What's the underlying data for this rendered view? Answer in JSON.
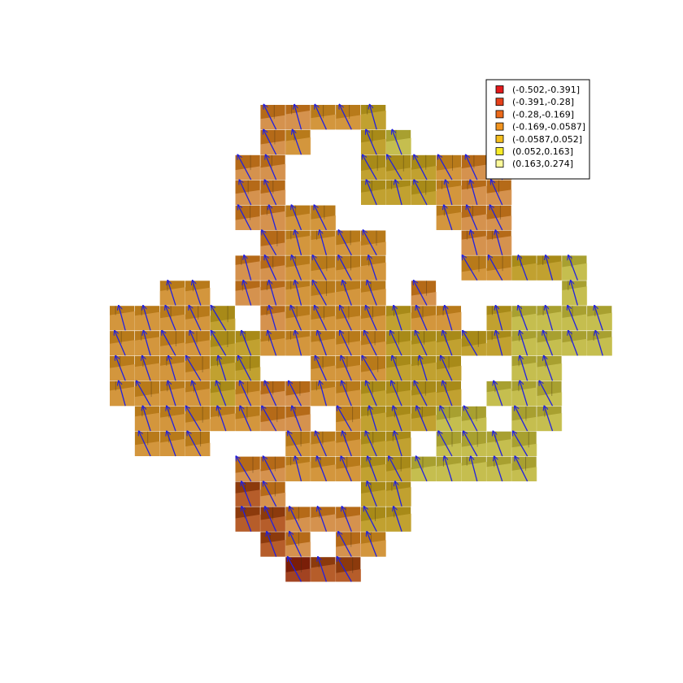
{
  "chart_data": {
    "type": "heatmap",
    "title": "",
    "xlabel": "",
    "ylabel": "",
    "grid": false,
    "legend_position": "top-right",
    "legend": [
      {
        "label": "(-0.502,-0.391]",
        "color": "#e31a1c"
      },
      {
        "label": "(-0.391,-0.28]",
        "color": "#e6401a"
      },
      {
        "label": "(-0.28,-0.169]",
        "color": "#ec6a1a"
      },
      {
        "label": "(-0.169,-0.0587]",
        "color": "#f19420"
      },
      {
        "label": "(-0.0587,0.052]",
        "color": "#f4be1e"
      },
      {
        "label": "(0.052,0.163]",
        "color": "#f9ec28"
      },
      {
        "label": "(0.163,0.274]",
        "color": "#fdfa9a"
      }
    ],
    "colors": {
      "arrow": "#2020e0",
      "legend_border": "#000000"
    },
    "cells": [
      {
        "col": 6,
        "row": 0,
        "bin": 2
      },
      {
        "col": 7,
        "row": 0,
        "bin": 2
      },
      {
        "col": 8,
        "row": 0,
        "bin": 3
      },
      {
        "col": 9,
        "row": 0,
        "bin": 3
      },
      {
        "col": 10,
        "row": 0,
        "bin": 4
      },
      {
        "col": 6,
        "row": 1,
        "bin": 2
      },
      {
        "col": 7,
        "row": 1,
        "bin": 3
      },
      {
        "col": 10,
        "row": 1,
        "bin": 4
      },
      {
        "col": 11,
        "row": 1,
        "bin": 5
      },
      {
        "col": 5,
        "row": 2,
        "bin": 2
      },
      {
        "col": 6,
        "row": 2,
        "bin": 2
      },
      {
        "col": 10,
        "row": 2,
        "bin": 4
      },
      {
        "col": 11,
        "row": 2,
        "bin": 4
      },
      {
        "col": 12,
        "row": 2,
        "bin": 4
      },
      {
        "col": 13,
        "row": 2,
        "bin": 3
      },
      {
        "col": 14,
        "row": 2,
        "bin": 2
      },
      {
        "col": 15,
        "row": 2,
        "bin": 2
      },
      {
        "col": 5,
        "row": 3,
        "bin": 2
      },
      {
        "col": 6,
        "row": 3,
        "bin": 2
      },
      {
        "col": 10,
        "row": 3,
        "bin": 4
      },
      {
        "col": 11,
        "row": 3,
        "bin": 4
      },
      {
        "col": 12,
        "row": 3,
        "bin": 4
      },
      {
        "col": 13,
        "row": 3,
        "bin": 3
      },
      {
        "col": 14,
        "row": 3,
        "bin": 2
      },
      {
        "col": 15,
        "row": 3,
        "bin": 2
      },
      {
        "col": 5,
        "row": 4,
        "bin": 2
      },
      {
        "col": 6,
        "row": 4,
        "bin": 2
      },
      {
        "col": 7,
        "row": 4,
        "bin": 3
      },
      {
        "col": 8,
        "row": 4,
        "bin": 3
      },
      {
        "col": 13,
        "row": 4,
        "bin": 3
      },
      {
        "col": 14,
        "row": 4,
        "bin": 2
      },
      {
        "col": 15,
        "row": 4,
        "bin": 2
      },
      {
        "col": 6,
        "row": 5,
        "bin": 2
      },
      {
        "col": 7,
        "row": 5,
        "bin": 3
      },
      {
        "col": 8,
        "row": 5,
        "bin": 3
      },
      {
        "col": 9,
        "row": 5,
        "bin": 3
      },
      {
        "col": 10,
        "row": 5,
        "bin": 3
      },
      {
        "col": 14,
        "row": 5,
        "bin": 2
      },
      {
        "col": 15,
        "row": 5,
        "bin": 2
      },
      {
        "col": 5,
        "row": 6,
        "bin": 2
      },
      {
        "col": 6,
        "row": 6,
        "bin": 2
      },
      {
        "col": 7,
        "row": 6,
        "bin": 3
      },
      {
        "col": 8,
        "row": 6,
        "bin": 3
      },
      {
        "col": 9,
        "row": 6,
        "bin": 3
      },
      {
        "col": 10,
        "row": 6,
        "bin": 3
      },
      {
        "col": 14,
        "row": 6,
        "bin": 3
      },
      {
        "col": 15,
        "row": 6,
        "bin": 3
      },
      {
        "col": 16,
        "row": 6,
        "bin": 4
      },
      {
        "col": 17,
        "row": 6,
        "bin": 4
      },
      {
        "col": 18,
        "row": 6,
        "bin": 5
      },
      {
        "col": 2,
        "row": 7,
        "bin": 3
      },
      {
        "col": 3,
        "row": 7,
        "bin": 3
      },
      {
        "col": 5,
        "row": 7,
        "bin": 2
      },
      {
        "col": 6,
        "row": 7,
        "bin": 2
      },
      {
        "col": 7,
        "row": 7,
        "bin": 3
      },
      {
        "col": 8,
        "row": 7,
        "bin": 3
      },
      {
        "col": 9,
        "row": 7,
        "bin": 3
      },
      {
        "col": 10,
        "row": 7,
        "bin": 3
      },
      {
        "col": 12,
        "row": 7,
        "bin": 2
      },
      {
        "col": 18,
        "row": 7,
        "bin": 5
      },
      {
        "col": 0,
        "row": 8,
        "bin": 3
      },
      {
        "col": 1,
        "row": 8,
        "bin": 3
      },
      {
        "col": 2,
        "row": 8,
        "bin": 3
      },
      {
        "col": 3,
        "row": 8,
        "bin": 3
      },
      {
        "col": 4,
        "row": 8,
        "bin": 4
      },
      {
        "col": 6,
        "row": 8,
        "bin": 2
      },
      {
        "col": 7,
        "row": 8,
        "bin": 3
      },
      {
        "col": 8,
        "row": 8,
        "bin": 3
      },
      {
        "col": 9,
        "row": 8,
        "bin": 3
      },
      {
        "col": 10,
        "row": 8,
        "bin": 3
      },
      {
        "col": 11,
        "row": 8,
        "bin": 4
      },
      {
        "col": 12,
        "row": 8,
        "bin": 3
      },
      {
        "col": 13,
        "row": 8,
        "bin": 3
      },
      {
        "col": 15,
        "row": 8,
        "bin": 4
      },
      {
        "col": 16,
        "row": 8,
        "bin": 5
      },
      {
        "col": 17,
        "row": 8,
        "bin": 5
      },
      {
        "col": 18,
        "row": 8,
        "bin": 5
      },
      {
        "col": 19,
        "row": 8,
        "bin": 5
      },
      {
        "col": 0,
        "row": 9,
        "bin": 3
      },
      {
        "col": 1,
        "row": 9,
        "bin": 3
      },
      {
        "col": 2,
        "row": 9,
        "bin": 3
      },
      {
        "col": 3,
        "row": 9,
        "bin": 3
      },
      {
        "col": 4,
        "row": 9,
        "bin": 4
      },
      {
        "col": 5,
        "row": 9,
        "bin": 4
      },
      {
        "col": 6,
        "row": 9,
        "bin": 3
      },
      {
        "col": 7,
        "row": 9,
        "bin": 3
      },
      {
        "col": 8,
        "row": 9,
        "bin": 3
      },
      {
        "col": 9,
        "row": 9,
        "bin": 3
      },
      {
        "col": 10,
        "row": 9,
        "bin": 3
      },
      {
        "col": 11,
        "row": 9,
        "bin": 4
      },
      {
        "col": 12,
        "row": 9,
        "bin": 4
      },
      {
        "col": 13,
        "row": 9,
        "bin": 4
      },
      {
        "col": 14,
        "row": 9,
        "bin": 4
      },
      {
        "col": 15,
        "row": 9,
        "bin": 4
      },
      {
        "col": 16,
        "row": 9,
        "bin": 5
      },
      {
        "col": 17,
        "row": 9,
        "bin": 5
      },
      {
        "col": 18,
        "row": 9,
        "bin": 5
      },
      {
        "col": 19,
        "row": 9,
        "bin": 5
      },
      {
        "col": 0,
        "row": 10,
        "bin": 3
      },
      {
        "col": 1,
        "row": 10,
        "bin": 3
      },
      {
        "col": 2,
        "row": 10,
        "bin": 3
      },
      {
        "col": 3,
        "row": 10,
        "bin": 3
      },
      {
        "col": 4,
        "row": 10,
        "bin": 4
      },
      {
        "col": 5,
        "row": 10,
        "bin": 4
      },
      {
        "col": 8,
        "row": 10,
        "bin": 3
      },
      {
        "col": 9,
        "row": 10,
        "bin": 3
      },
      {
        "col": 10,
        "row": 10,
        "bin": 3
      },
      {
        "col": 11,
        "row": 10,
        "bin": 4
      },
      {
        "col": 12,
        "row": 10,
        "bin": 4
      },
      {
        "col": 13,
        "row": 10,
        "bin": 4
      },
      {
        "col": 16,
        "row": 10,
        "bin": 5
      },
      {
        "col": 17,
        "row": 10,
        "bin": 5
      },
      {
        "col": 0,
        "row": 11,
        "bin": 3
      },
      {
        "col": 1,
        "row": 11,
        "bin": 3
      },
      {
        "col": 2,
        "row": 11,
        "bin": 3
      },
      {
        "col": 3,
        "row": 11,
        "bin": 3
      },
      {
        "col": 4,
        "row": 11,
        "bin": 4
      },
      {
        "col": 5,
        "row": 11,
        "bin": 3
      },
      {
        "col": 6,
        "row": 11,
        "bin": 2
      },
      {
        "col": 7,
        "row": 11,
        "bin": 2
      },
      {
        "col": 8,
        "row": 11,
        "bin": 3
      },
      {
        "col": 9,
        "row": 11,
        "bin": 3
      },
      {
        "col": 10,
        "row": 11,
        "bin": 4
      },
      {
        "col": 11,
        "row": 11,
        "bin": 4
      },
      {
        "col": 12,
        "row": 11,
        "bin": 4
      },
      {
        "col": 13,
        "row": 11,
        "bin": 4
      },
      {
        "col": 15,
        "row": 11,
        "bin": 5
      },
      {
        "col": 16,
        "row": 11,
        "bin": 5
      },
      {
        "col": 17,
        "row": 11,
        "bin": 5
      },
      {
        "col": 1,
        "row": 12,
        "bin": 3
      },
      {
        "col": 2,
        "row": 12,
        "bin": 3
      },
      {
        "col": 3,
        "row": 12,
        "bin": 3
      },
      {
        "col": 4,
        "row": 12,
        "bin": 3
      },
      {
        "col": 5,
        "row": 12,
        "bin": 3
      },
      {
        "col": 6,
        "row": 12,
        "bin": 2
      },
      {
        "col": 7,
        "row": 12,
        "bin": 2
      },
      {
        "col": 9,
        "row": 12,
        "bin": 3
      },
      {
        "col": 10,
        "row": 12,
        "bin": 4
      },
      {
        "col": 11,
        "row": 12,
        "bin": 4
      },
      {
        "col": 12,
        "row": 12,
        "bin": 4
      },
      {
        "col": 13,
        "row": 12,
        "bin": 5
      },
      {
        "col": 14,
        "row": 12,
        "bin": 5
      },
      {
        "col": 16,
        "row": 12,
        "bin": 5
      },
      {
        "col": 17,
        "row": 12,
        "bin": 5
      },
      {
        "col": 1,
        "row": 13,
        "bin": 3
      },
      {
        "col": 2,
        "row": 13,
        "bin": 3
      },
      {
        "col": 3,
        "row": 13,
        "bin": 3
      },
      {
        "col": 7,
        "row": 13,
        "bin": 3
      },
      {
        "col": 8,
        "row": 13,
        "bin": 3
      },
      {
        "col": 9,
        "row": 13,
        "bin": 3
      },
      {
        "col": 10,
        "row": 13,
        "bin": 4
      },
      {
        "col": 11,
        "row": 13,
        "bin": 4
      },
      {
        "col": 13,
        "row": 13,
        "bin": 5
      },
      {
        "col": 14,
        "row": 13,
        "bin": 5
      },
      {
        "col": 15,
        "row": 13,
        "bin": 5
      },
      {
        "col": 16,
        "row": 13,
        "bin": 5
      },
      {
        "col": 5,
        "row": 14,
        "bin": 2
      },
      {
        "col": 6,
        "row": 14,
        "bin": 2
      },
      {
        "col": 7,
        "row": 14,
        "bin": 3
      },
      {
        "col": 8,
        "row": 14,
        "bin": 3
      },
      {
        "col": 9,
        "row": 14,
        "bin": 3
      },
      {
        "col": 10,
        "row": 14,
        "bin": 4
      },
      {
        "col": 11,
        "row": 14,
        "bin": 4
      },
      {
        "col": 12,
        "row": 14,
        "bin": 5
      },
      {
        "col": 13,
        "row": 14,
        "bin": 5
      },
      {
        "col": 14,
        "row": 14,
        "bin": 5
      },
      {
        "col": 15,
        "row": 14,
        "bin": 5
      },
      {
        "col": 16,
        "row": 14,
        "bin": 5
      },
      {
        "col": 5,
        "row": 15,
        "bin": 1
      },
      {
        "col": 6,
        "row": 15,
        "bin": 2
      },
      {
        "col": 10,
        "row": 15,
        "bin": 4
      },
      {
        "col": 11,
        "row": 15,
        "bin": 4
      },
      {
        "col": 5,
        "row": 16,
        "bin": 1
      },
      {
        "col": 6,
        "row": 16,
        "bin": 1
      },
      {
        "col": 7,
        "row": 16,
        "bin": 2
      },
      {
        "col": 8,
        "row": 16,
        "bin": 2
      },
      {
        "col": 9,
        "row": 16,
        "bin": 2
      },
      {
        "col": 10,
        "row": 16,
        "bin": 4
      },
      {
        "col": 11,
        "row": 16,
        "bin": 4
      },
      {
        "col": 6,
        "row": 17,
        "bin": 1
      },
      {
        "col": 7,
        "row": 17,
        "bin": 2
      },
      {
        "col": 9,
        "row": 17,
        "bin": 2
      },
      {
        "col": 10,
        "row": 17,
        "bin": 3
      },
      {
        "col": 7,
        "row": 18,
        "bin": 0
      },
      {
        "col": 8,
        "row": 18,
        "bin": 1
      },
      {
        "col": 9,
        "row": 18,
        "bin": 1
      }
    ]
  }
}
